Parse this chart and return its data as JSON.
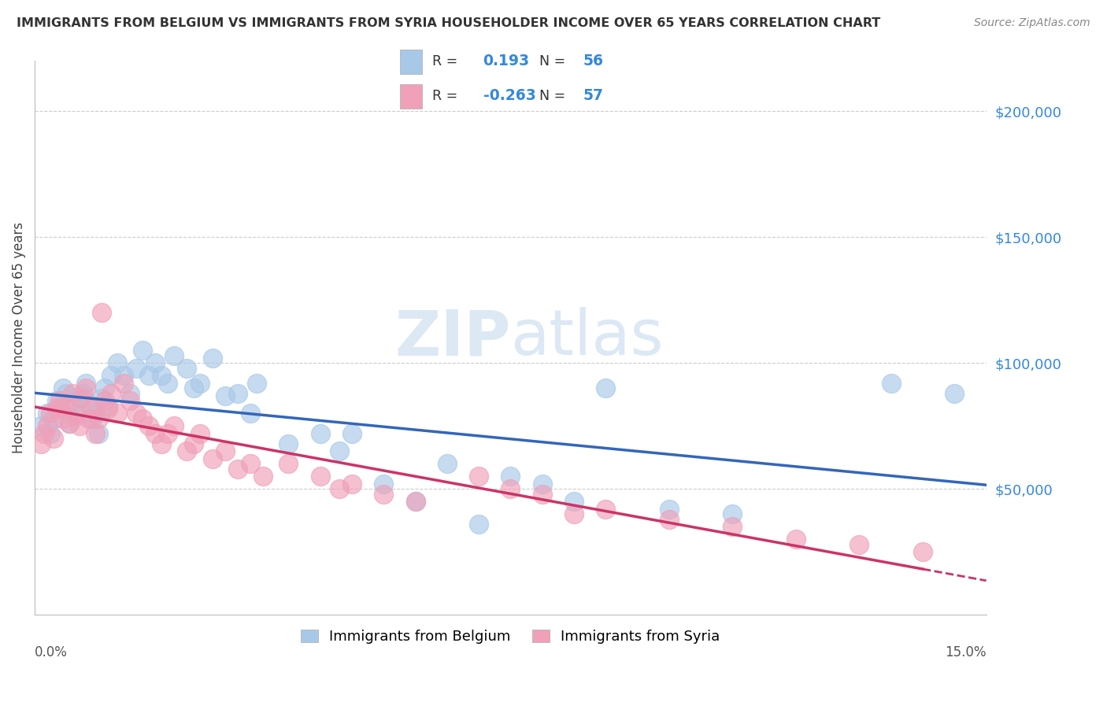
{
  "title": "IMMIGRANTS FROM BELGIUM VS IMMIGRANTS FROM SYRIA HOUSEHOLDER INCOME OVER 65 YEARS CORRELATION CHART",
  "source": "Source: ZipAtlas.com",
  "ylabel": "Householder Income Over 65 years",
  "xlim": [
    0.0,
    15.0
  ],
  "ylim": [
    0,
    220000
  ],
  "belgium_R": "0.193",
  "belgium_N": "56",
  "syria_R": "-0.263",
  "syria_N": "57",
  "legend_label1": "Immigrants from Belgium",
  "legend_label2": "Immigrants from Syria",
  "belgium_color": "#a8c8e8",
  "syria_color": "#f0a0b8",
  "belgium_line_color": "#3366bb",
  "syria_line_color": "#cc3366",
  "watermark_color": "#dde8f5",
  "belgium_x": [
    0.1,
    0.2,
    0.25,
    0.3,
    0.35,
    0.4,
    0.45,
    0.5,
    0.55,
    0.6,
    0.65,
    0.7,
    0.75,
    0.8,
    0.85,
    0.9,
    0.95,
    1.0,
    1.05,
    1.1,
    1.15,
    1.2,
    1.3,
    1.4,
    1.5,
    1.6,
    1.7,
    1.8,
    1.9,
    2.0,
    2.1,
    2.2,
    2.4,
    2.5,
    2.6,
    2.8,
    3.0,
    3.2,
    3.4,
    3.5,
    4.0,
    4.5,
    4.8,
    5.0,
    5.5,
    6.0,
    6.5,
    7.0,
    7.5,
    8.0,
    8.5,
    9.0,
    10.0,
    11.0,
    13.5,
    14.5
  ],
  "belgium_y": [
    75000,
    80000,
    72000,
    78000,
    85000,
    82000,
    90000,
    88000,
    76000,
    83000,
    79000,
    86000,
    88000,
    92000,
    84000,
    78000,
    80000,
    72000,
    86000,
    90000,
    83000,
    95000,
    100000,
    95000,
    88000,
    98000,
    105000,
    95000,
    100000,
    95000,
    92000,
    103000,
    98000,
    90000,
    92000,
    102000,
    87000,
    88000,
    80000,
    92000,
    68000,
    72000,
    65000,
    72000,
    52000,
    45000,
    60000,
    36000,
    55000,
    52000,
    45000,
    90000,
    42000,
    40000,
    92000,
    88000
  ],
  "syria_x": [
    0.1,
    0.15,
    0.2,
    0.25,
    0.3,
    0.35,
    0.4,
    0.45,
    0.5,
    0.55,
    0.6,
    0.65,
    0.7,
    0.75,
    0.8,
    0.85,
    0.9,
    0.95,
    1.0,
    1.05,
    1.1,
    1.15,
    1.2,
    1.3,
    1.4,
    1.5,
    1.6,
    1.7,
    1.8,
    1.9,
    2.0,
    2.1,
    2.2,
    2.4,
    2.5,
    2.6,
    2.8,
    3.0,
    3.2,
    3.4,
    3.6,
    4.0,
    4.5,
    4.8,
    5.0,
    5.5,
    6.0,
    7.0,
    7.5,
    8.0,
    8.5,
    9.0,
    10.0,
    11.0,
    12.0,
    13.0,
    14.0
  ],
  "syria_y": [
    68000,
    72000,
    75000,
    80000,
    70000,
    82000,
    85000,
    78000,
    83000,
    76000,
    88000,
    80000,
    75000,
    86000,
    90000,
    78000,
    82000,
    72000,
    78000,
    120000,
    85000,
    82000,
    88000,
    80000,
    92000,
    85000,
    80000,
    78000,
    75000,
    72000,
    68000,
    72000,
    75000,
    65000,
    68000,
    72000,
    62000,
    65000,
    58000,
    60000,
    55000,
    60000,
    55000,
    50000,
    52000,
    48000,
    45000,
    55000,
    50000,
    48000,
    40000,
    42000,
    38000,
    35000,
    30000,
    28000,
    25000
  ]
}
